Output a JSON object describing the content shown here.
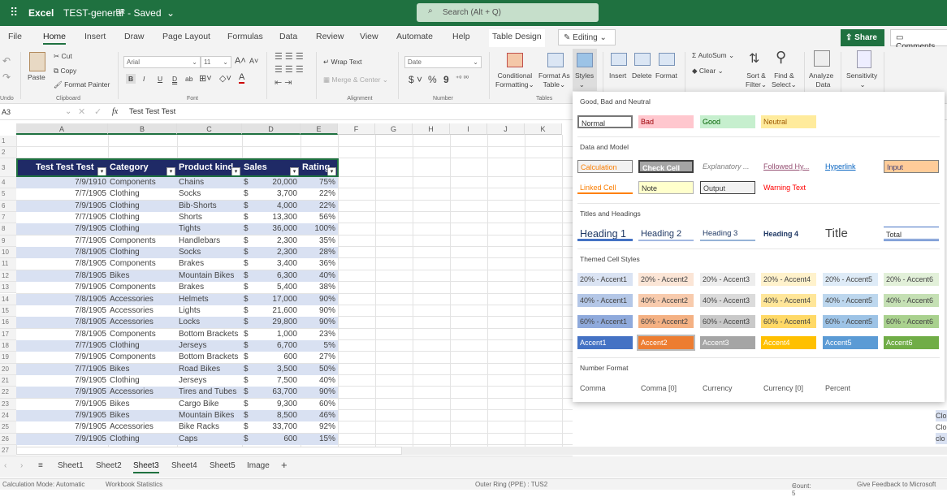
{
  "app": {
    "name": "Excel",
    "doc_title": "TEST-general",
    "doc_suffix": "ᴿᴿ - Saved",
    "search_placeholder": "Search (Alt + Q)"
  },
  "tabs": [
    "File",
    "Home",
    "Insert",
    "Draw",
    "Page Layout",
    "Formulas",
    "Data",
    "Review",
    "View",
    "Automate",
    "Help",
    "Table Design"
  ],
  "active_tab": "Home",
  "editing": "Editing",
  "share": "Share",
  "comments": "Comments",
  "ribbon": {
    "undo_group": "Undo",
    "paste": "Paste",
    "cut": "Cut",
    "copy": "Copy",
    "format_painter": "Format Painter",
    "clipboard": "Clipboard",
    "font_name": "Arial",
    "font_size": "11",
    "font": "Font",
    "bold": "B",
    "italic": "I",
    "underline": "U",
    "dbl_underline": "D",
    "wrap_text": "Wrap Text",
    "merge_center": "Merge & Center",
    "alignment": "Alignment",
    "number_format": "Date",
    "dollar": "$",
    "percent": "%",
    "comma": "9",
    "number": "Number",
    "conditional": "Conditional",
    "formatting": "Formatting",
    "format_as": "Format As",
    "table": "Table",
    "styles": "Styles",
    "tables": "Tables",
    "insert": "Insert",
    "delete": "Delete",
    "format": "Format",
    "autosum": "AutoSum",
    "clear": "Clear",
    "sort": "Sort &",
    "filter": "Filter",
    "find": "Find &",
    "select": "Select",
    "analyze": "Analyze",
    "data": "Data",
    "sensitivity": "Sensitivity"
  },
  "formula_bar": {
    "name_box": "A3",
    "fx": "fx",
    "value": "Test Test Test"
  },
  "columns": [
    "A",
    "B",
    "C",
    "D",
    "E",
    "F",
    "G",
    "H",
    "I",
    "J",
    "K"
  ],
  "table": {
    "headers": [
      "Test Test Test",
      "Category",
      "Product kind",
      "Sales",
      "Rating"
    ],
    "rows": [
      [
        "7/9/1910",
        "Components",
        "Chains",
        "20,000",
        "75%"
      ],
      [
        "7/7/1905",
        "Clothing",
        "Socks",
        "3,700",
        "22%"
      ],
      [
        "7/9/1905",
        "Clothing",
        "Bib-Shorts",
        "4,000",
        "22%"
      ],
      [
        "7/7/1905",
        "Clothing",
        "Shorts",
        "13,300",
        "56%"
      ],
      [
        "7/9/1905",
        "Clothing",
        "Tights",
        "36,000",
        "100%"
      ],
      [
        "7/7/1905",
        "Components",
        "Handlebars",
        "2,300",
        "35%"
      ],
      [
        "7/8/1905",
        "Clothing",
        "Socks",
        "2,300",
        "28%"
      ],
      [
        "7/8/1905",
        "Components",
        "Brakes",
        "3,400",
        "36%"
      ],
      [
        "7/8/1905",
        "Bikes",
        "Mountain Bikes",
        "6,300",
        "40%"
      ],
      [
        "7/9/1905",
        "Components",
        "Brakes",
        "5,400",
        "38%"
      ],
      [
        "7/8/1905",
        "Accessories",
        "Helmets",
        "17,000",
        "90%"
      ],
      [
        "7/8/1905",
        "Accessories",
        "Lights",
        "21,600",
        "90%"
      ],
      [
        "7/8/1905",
        "Accessories",
        "Locks",
        "29,800",
        "90%"
      ],
      [
        "7/8/1905",
        "Components",
        "Bottom Brackets",
        "1,000",
        "23%"
      ],
      [
        "7/7/1905",
        "Clothing",
        "Jerseys",
        "6,700",
        "5%"
      ],
      [
        "7/9/1905",
        "Components",
        "Bottom Brackets",
        "600",
        "27%"
      ],
      [
        "7/7/1905",
        "Bikes",
        "Road Bikes",
        "3,500",
        "50%"
      ],
      [
        "7/9/1905",
        "Clothing",
        "Jerseys",
        "7,500",
        "40%"
      ],
      [
        "7/9/1905",
        "Accessories",
        "Tires and Tubes",
        "63,700",
        "90%"
      ],
      [
        "7/9/1905",
        "Bikes",
        "Cargo Bike",
        "9,300",
        "60%"
      ],
      [
        "7/9/1905",
        "Bikes",
        "Mountain Bikes",
        "8,500",
        "46%"
      ],
      [
        "7/9/1905",
        "Accessories",
        "Bike Racks",
        "33,700",
        "92%"
      ],
      [
        "7/9/1905",
        "Clothing",
        "Caps",
        "600",
        "15%"
      ]
    ],
    "currency": "$",
    "header_color": "#1f2a66",
    "band_color": "#d9e1f2"
  },
  "styles_panel": {
    "sections": {
      "good_bad": "Good, Bad and Neutral",
      "data_model": "Data and Model",
      "titles": "Titles and Headings",
      "themed": "Themed Cell Styles",
      "number": "Number Format"
    },
    "good_bad": [
      "Normal",
      "Bad",
      "Good",
      "Neutral"
    ],
    "data_model": [
      "Calculation",
      "Check Cell",
      "Explanatory ...",
      "Followed Hy...",
      "Hyperlink",
      "Input",
      "Linked Cell",
      "Note",
      "Output",
      "Warning Text"
    ],
    "titles": [
      "Heading 1",
      "Heading 2",
      "Heading 3",
      "Heading 4",
      "Title",
      "Total"
    ],
    "themed": [
      [
        "20% - Accent1",
        "20% - Accent2",
        "20% - Accent3",
        "20% - Accent4",
        "20% - Accent5",
        "20% - Accent6"
      ],
      [
        "40% - Accent1",
        "40% - Accent2",
        "40% - Accent3",
        "40% - Accent4",
        "40% - Accent5",
        "40% - Accent6"
      ],
      [
        "60% - Accent1",
        "60% - Accent2",
        "60% - Accent3",
        "60% - Accent4",
        "60% - Accent5",
        "60% - Accent6"
      ],
      [
        "Accent1",
        "Accent2",
        "Accent3",
        "Accent4",
        "Accent5",
        "Accent6"
      ]
    ],
    "themed_colors": [
      [
        "#dae3f3",
        "#fbe5d6",
        "#ededed",
        "#fff2cc",
        "#deebf7",
        "#e2f0d9"
      ],
      [
        "#b4c7e7",
        "#f8cbad",
        "#dbdbdb",
        "#ffe699",
        "#bdd7ee",
        "#c5e0b4"
      ],
      [
        "#8faadc",
        "#f4b183",
        "#c9c9c9",
        "#ffd966",
        "#9dc3e6",
        "#a9d18e"
      ],
      [
        "#4472c4",
        "#ed7d31",
        "#a5a5a5",
        "#ffc000",
        "#5b9bd5",
        "#70ad47"
      ]
    ],
    "number": [
      "Comma",
      "Comma [0]",
      "Currency",
      "Currency [0]",
      "Percent"
    ]
  },
  "right_edge_cells": [
    "Clo",
    "Clo",
    "clo"
  ],
  "sheets": [
    "Sheet1",
    "Sheet2",
    "Sheet3",
    "Sheet4",
    "Sheet5",
    "Image"
  ],
  "active_sheet": "Sheet3",
  "add_sheet": "+",
  "status": {
    "calc": "Calculation Mode: Automatic",
    "stats": "Workbook Statistics",
    "ring": "Outer Ring (PPE) : TUS2",
    "count": "Count: 5",
    "feedback": "Give Feedback to Microsoft"
  }
}
